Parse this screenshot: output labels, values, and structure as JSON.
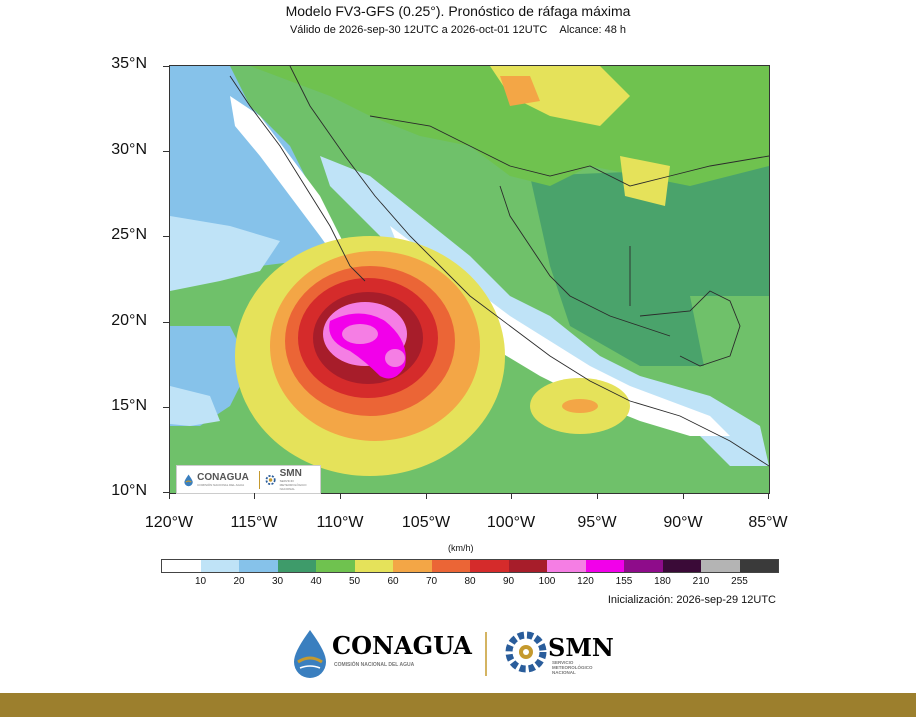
{
  "header": {
    "title": "Modelo FV3-GFS (0.25°). Pronóstico de ráfaga máxima",
    "valid": "Válido de 2026-sep-30 12UTC a 2026-oct-01 12UTC",
    "range": "Alcance: 48 h"
  },
  "map": {
    "lat_labels": [
      "35°N",
      "30°N",
      "25°N",
      "20°N",
      "15°N",
      "10°N"
    ],
    "lon_labels": [
      "120°W",
      "115°W",
      "110°W",
      "105°W",
      "100°W",
      "95°W",
      "90°W",
      "85°W"
    ],
    "extent": {
      "lon_min": -120,
      "lon_max": -85,
      "lat_min": 10,
      "lat_max": 35
    },
    "feature": "tropical cyclone wind gust maximum near 19°N 109°W",
    "colors": {
      "ocean_base": "#6fc16a",
      "land_base": "#4aa36b"
    }
  },
  "colorbar": {
    "units": "(km/h)",
    "labels": [
      "10",
      "20",
      "30",
      "40",
      "50",
      "60",
      "70",
      "80",
      "90",
      "100",
      "120",
      "155",
      "180",
      "210",
      "255"
    ],
    "colors": [
      "#ffffff",
      "#bfe3f7",
      "#86c2ea",
      "#3e9b6a",
      "#6fc24f",
      "#e5e25a",
      "#f3a646",
      "#eb6536",
      "#d52b2b",
      "#a71d2a",
      "#f57ee4",
      "#f200ea",
      "#8e0c8a",
      "#3a0a37",
      "#b4b4b4",
      "#3a3a3a"
    ]
  },
  "footer": {
    "init": "Inicialización: 2026-sep-29 12UTC",
    "conagua": "CONAGUA",
    "conagua_sub": "COMISIÓN NACIONAL DEL AGUA",
    "smn": "SMN",
    "smn_sub": "SERVICIO METEOROLÓGICO NACIONAL",
    "smn_sub_lines": [
      "SERVICIO",
      "METEOROLÓGICO",
      "NACIONAL"
    ]
  }
}
